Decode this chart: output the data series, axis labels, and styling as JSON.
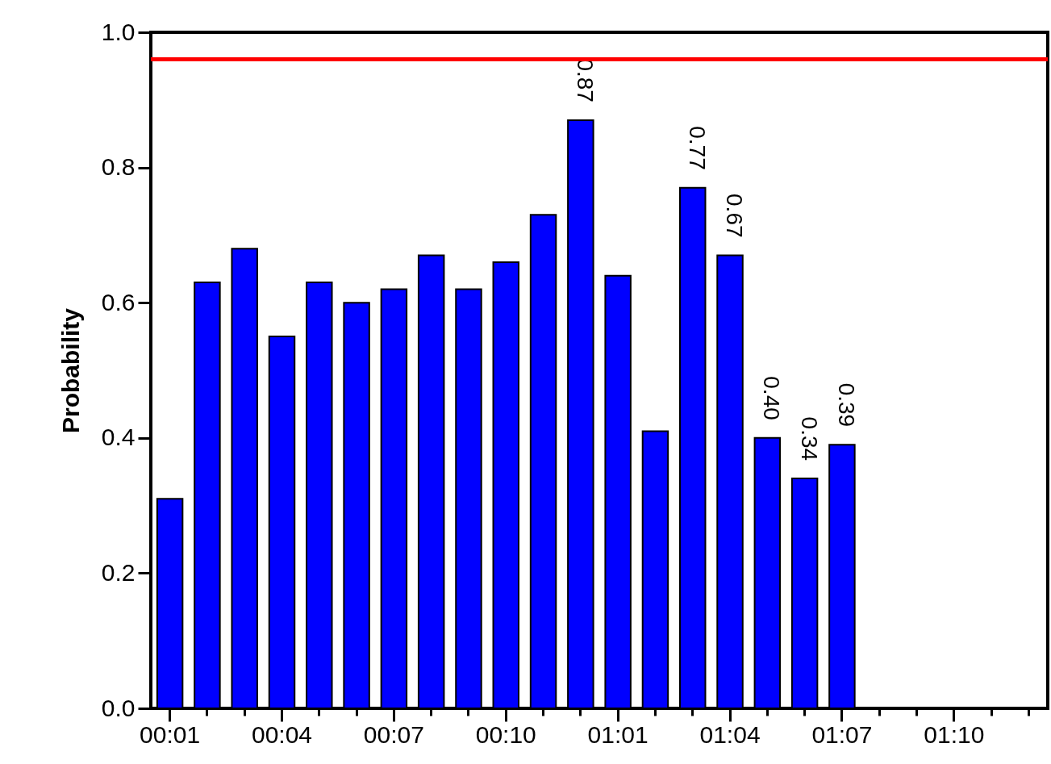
{
  "chart_data": {
    "type": "bar",
    "ylabel": "Probability",
    "categories": [
      "00:01",
      null,
      null,
      "00:04",
      null,
      null,
      "00:07",
      null,
      null,
      "00:10",
      null,
      null,
      "01:01",
      null,
      null,
      "01:04",
      null,
      null,
      "01:07",
      null,
      null,
      "01:10",
      null,
      null
    ],
    "values": [
      0.31,
      0.63,
      0.68,
      0.55,
      0.63,
      0.6,
      0.62,
      0.67,
      0.62,
      0.66,
      0.73,
      0.87,
      0.64,
      0.41,
      0.77,
      0.67,
      0.4,
      0.34,
      0.39,
      null,
      null,
      null,
      null,
      null
    ],
    "value_labels": [
      null,
      null,
      null,
      null,
      null,
      null,
      null,
      null,
      null,
      null,
      null,
      "0.87",
      null,
      null,
      "0.77",
      "0.67",
      "0.40",
      "0.34",
      "0.39",
      null,
      null,
      null,
      null,
      null
    ],
    "color": "#0000ff",
    "ylim": [
      0,
      1
    ],
    "yticks": [
      {
        "value": 0,
        "label": "0.0"
      },
      0.2,
      0.4,
      0.6,
      0.8,
      {
        "value": 1,
        "label": "1.0"
      }
    ],
    "ref_lines": [
      {
        "axis": "y",
        "value": 0.96,
        "color": "#ff0000"
      }
    ],
    "grid": false
  }
}
